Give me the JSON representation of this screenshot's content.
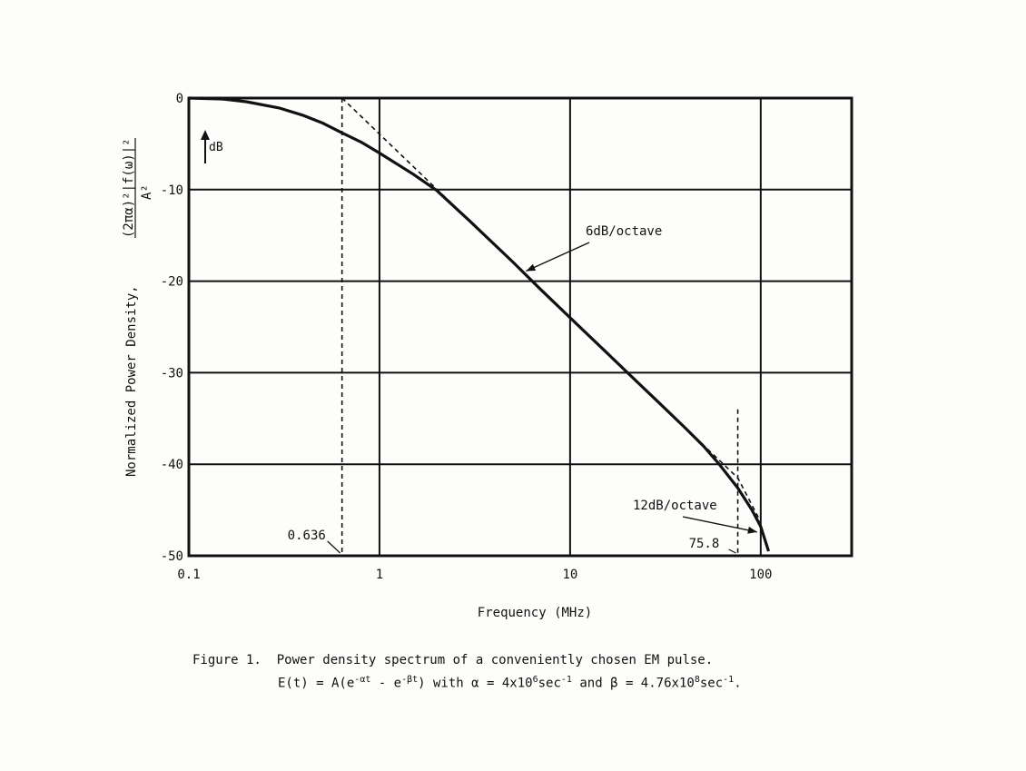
{
  "chart_data": {
    "type": "line",
    "xscale": "log",
    "xlabel": "Frequency (MHz)",
    "ylabel": "Normalized Power Density,",
    "ylabel_formula": {
      "numerator": "(2πα)²|f(ω)|²",
      "denominator": "A²"
    },
    "xlim": [
      0.1,
      300
    ],
    "ylim": [
      -50,
      0
    ],
    "x_ticks": [
      0.1,
      1,
      10,
      100
    ],
    "x_tick_labels": [
      "0.1",
      "1",
      "10",
      "100"
    ],
    "y_ticks": [
      0,
      -10,
      -20,
      -30,
      -40,
      -50
    ],
    "y_tick_labels": [
      "0",
      "-10",
      "-20",
      "-30",
      "-40",
      "-50"
    ],
    "grid": true,
    "unit_marker": "dB",
    "series": [
      {
        "x": [
          0.1,
          0.15,
          0.2,
          0.3,
          0.4,
          0.5,
          0.636,
          0.8,
          1,
          1.5,
          2,
          3,
          5,
          7,
          10,
          15,
          20,
          30,
          40,
          50,
          60,
          75.8,
          90,
          100,
          110
        ],
        "y": [
          0,
          -0.1,
          -0.4,
          -1.1,
          -1.9,
          -2.7,
          -3.8,
          -4.8,
          -6.0,
          -8.3,
          -10.1,
          -13.5,
          -17.9,
          -20.9,
          -24.0,
          -27.5,
          -30.0,
          -33.5,
          -36.0,
          -38.0,
          -39.9,
          -42.6,
          -45.0,
          -46.8,
          -49.5
        ]
      },
      {
        "style": "dashed",
        "x": [
          0.636,
          0.8,
          1,
          2,
          5,
          10,
          20,
          40,
          75.8,
          100
        ],
        "y": [
          0,
          -1.98,
          -3.93,
          -9.96,
          -17.9,
          -23.9,
          -29.9,
          -35.98,
          -41.5,
          -46.3
        ]
      }
    ],
    "vlines": [
      {
        "x": 0.636,
        "label": "0.636",
        "style": "dashed"
      },
      {
        "x": 75.8,
        "label": "75.8",
        "style": "dashed"
      }
    ],
    "annotations": [
      {
        "text": "6dB/octave",
        "points_to": [
          5.5,
          -19
        ]
      },
      {
        "text": "12dB/octave",
        "points_to": [
          100,
          -47.5
        ]
      }
    ]
  },
  "caption": {
    "label": "Figure 1.",
    "text": "Power density spectrum of a conveniently chosen EM pulse.",
    "eq_lhs": "E(t) = A(e",
    "eq_exp1": "-αt",
    "eq_mid": " - e",
    "eq_exp2": "-βt",
    "eq_with_alpha": ") with α = 4x10",
    "alpha_exp": "6",
    "unit1": "sec",
    "unit_exp1": "-1",
    "and_beta": " and β = 4.76x10",
    "beta_exp": "8",
    "unit2": "sec",
    "unit_exp2": "-1",
    "end": "."
  }
}
